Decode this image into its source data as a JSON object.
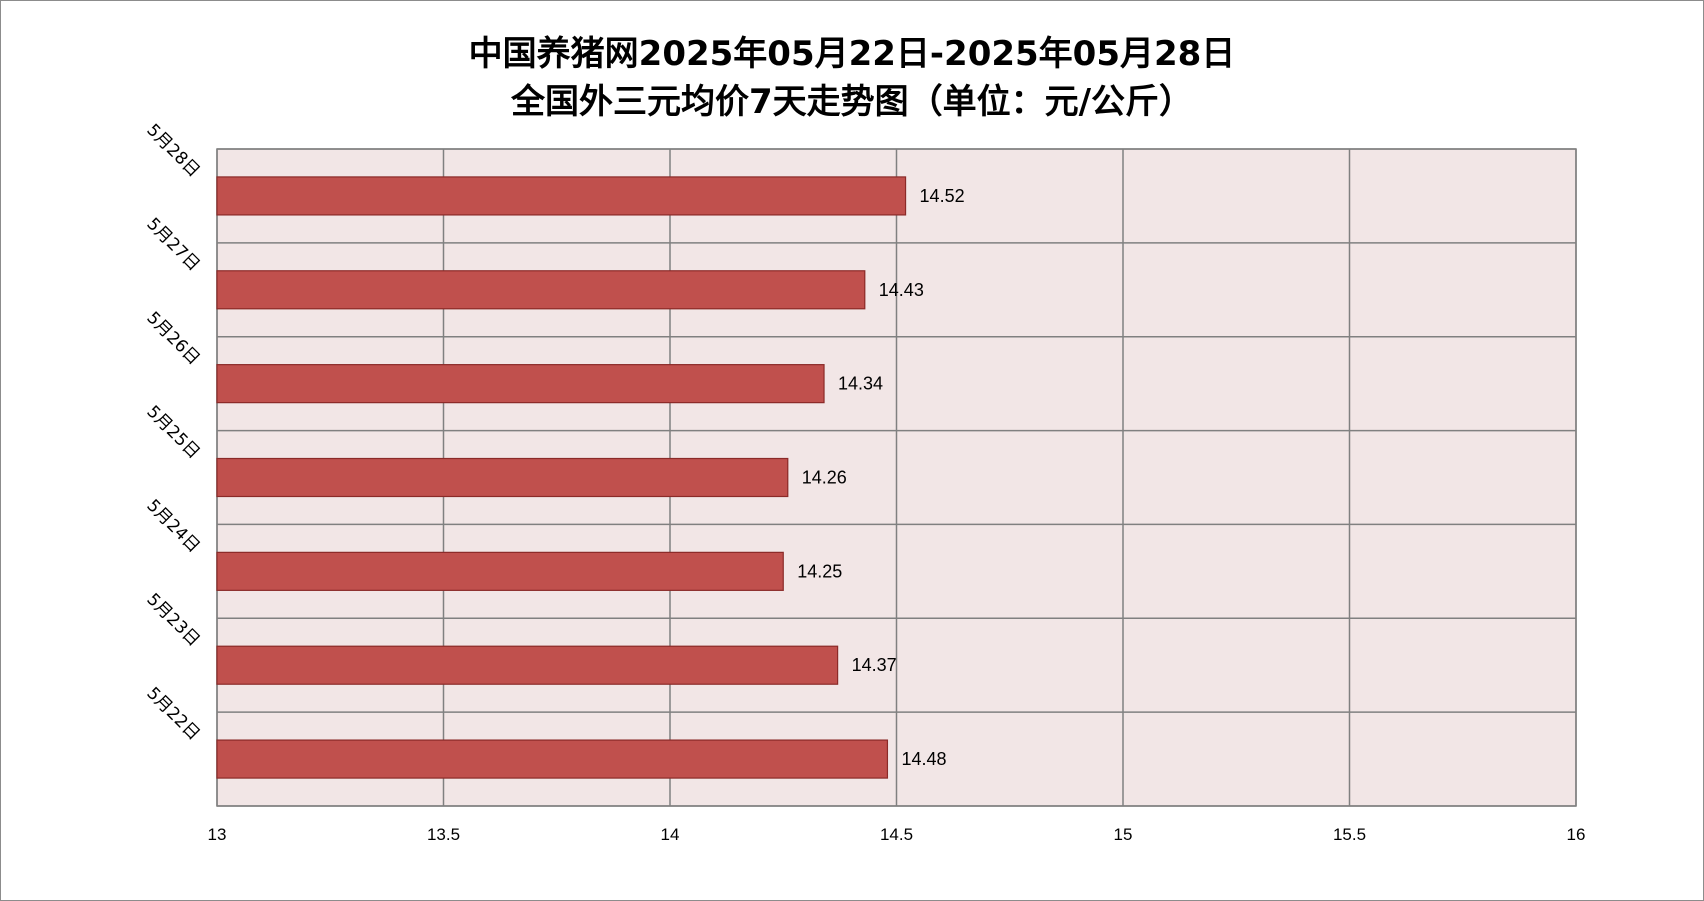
{
  "chart_data": {
    "type": "bar",
    "orientation": "horizontal",
    "title_line1": "中国养猪网2025年05月22日-2025年05月28日",
    "title_line2": "全国外三元均价7天走势图（单位：元/公斤）",
    "categories": [
      "5月28日",
      "5月27日",
      "5月26日",
      "5月25日",
      "5月24日",
      "5月23日",
      "5月22日"
    ],
    "values": [
      14.52,
      14.43,
      14.34,
      14.26,
      14.25,
      14.37,
      14.48
    ],
    "value_labels": [
      "14.52",
      "14.43",
      "14.34",
      "14.26",
      "14.25",
      "14.37",
      "14.48"
    ],
    "xlim": [
      13,
      16
    ],
    "x_ticks": [
      "13",
      "13.5",
      "14",
      "14.5",
      "15",
      "15.5",
      "16"
    ],
    "grid": true,
    "legend": "none",
    "colors": {
      "bar_fill": "#c0504d",
      "bar_stroke": "#8b2a28",
      "plot_bg": "#f2e6e6",
      "grid": "#808080"
    }
  }
}
